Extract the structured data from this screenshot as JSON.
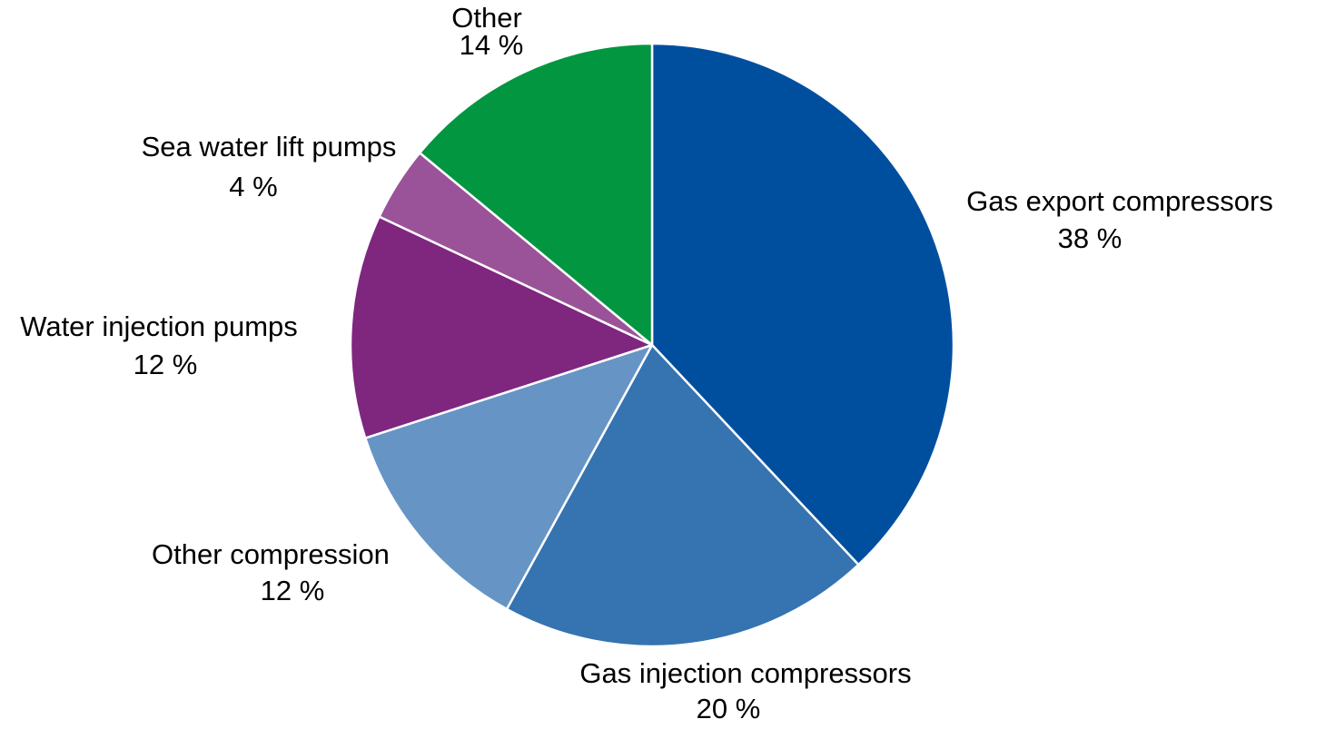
{
  "chart_data": {
    "type": "pie",
    "start_angle_deg": 0,
    "direction": "clockwise",
    "show_legend": false,
    "slices": [
      {
        "label": "Gas export compressors",
        "value": 38,
        "value_label": "38 %",
        "color": "#004F9F"
      },
      {
        "label": "Gas injection compressors",
        "value": 20,
        "value_label": "20 %",
        "color": "#3573B1"
      },
      {
        "label": "Other compression",
        "value": 12,
        "value_label": "12 %",
        "color": "#6695C5"
      },
      {
        "label": "Water injection pumps",
        "value": 12,
        "value_label": "12 %",
        "color": "#7F267F"
      },
      {
        "label": "Sea water lift pumps",
        "value": 4,
        "value_label": "4 %",
        "color": "#9A5398"
      },
      {
        "label": "Other",
        "value": 14,
        "value_label": "14 %",
        "color": "#029640"
      }
    ]
  }
}
